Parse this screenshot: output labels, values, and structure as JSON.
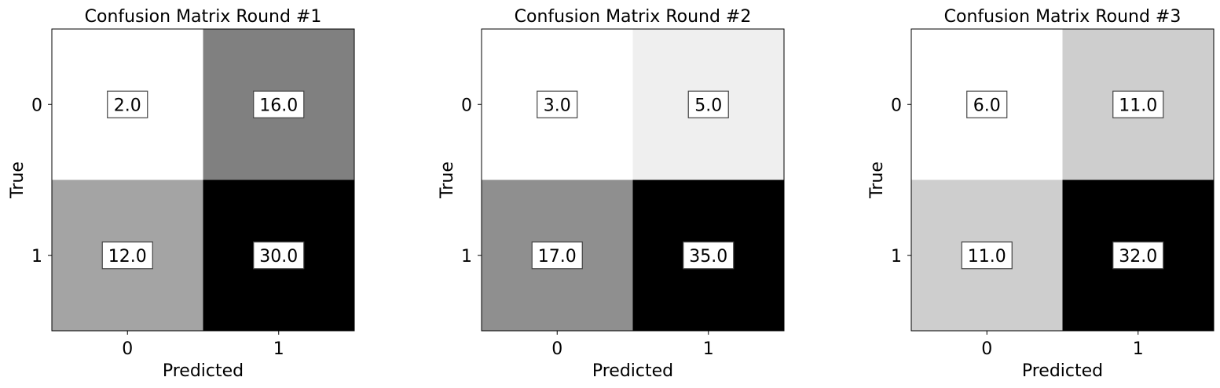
{
  "chart_data": [
    {
      "type": "heatmap",
      "title": "Confusion Matrix Round #1",
      "xlabel": "Predicted",
      "ylabel": "True",
      "x_categories": [
        "0",
        "1"
      ],
      "y_categories": [
        "0",
        "1"
      ],
      "values": [
        [
          2.0,
          16.0
        ],
        [
          12.0,
          30.0
        ]
      ],
      "value_labels": [
        [
          "2.0",
          "16.0"
        ],
        [
          "12.0",
          "30.0"
        ]
      ],
      "colormap": "Greys",
      "grid": false
    },
    {
      "type": "heatmap",
      "title": "Confusion Matrix Round #2",
      "xlabel": "Predicted",
      "ylabel": "True",
      "x_categories": [
        "0",
        "1"
      ],
      "y_categories": [
        "0",
        "1"
      ],
      "values": [
        [
          3.0,
          5.0
        ],
        [
          17.0,
          35.0
        ]
      ],
      "value_labels": [
        [
          "3.0",
          "5.0"
        ],
        [
          "17.0",
          "35.0"
        ]
      ],
      "colormap": "Greys",
      "grid": false
    },
    {
      "type": "heatmap",
      "title": "Confusion Matrix Round #3",
      "xlabel": "Predicted",
      "ylabel": "True",
      "x_categories": [
        "0",
        "1"
      ],
      "y_categories": [
        "0",
        "1"
      ],
      "values": [
        [
          6.0,
          11.0
        ],
        [
          11.0,
          32.0
        ]
      ],
      "value_labels": [
        [
          "6.0",
          "11.0"
        ],
        [
          "11.0",
          "32.0"
        ]
      ],
      "colormap": "Greys",
      "grid": false
    }
  ]
}
